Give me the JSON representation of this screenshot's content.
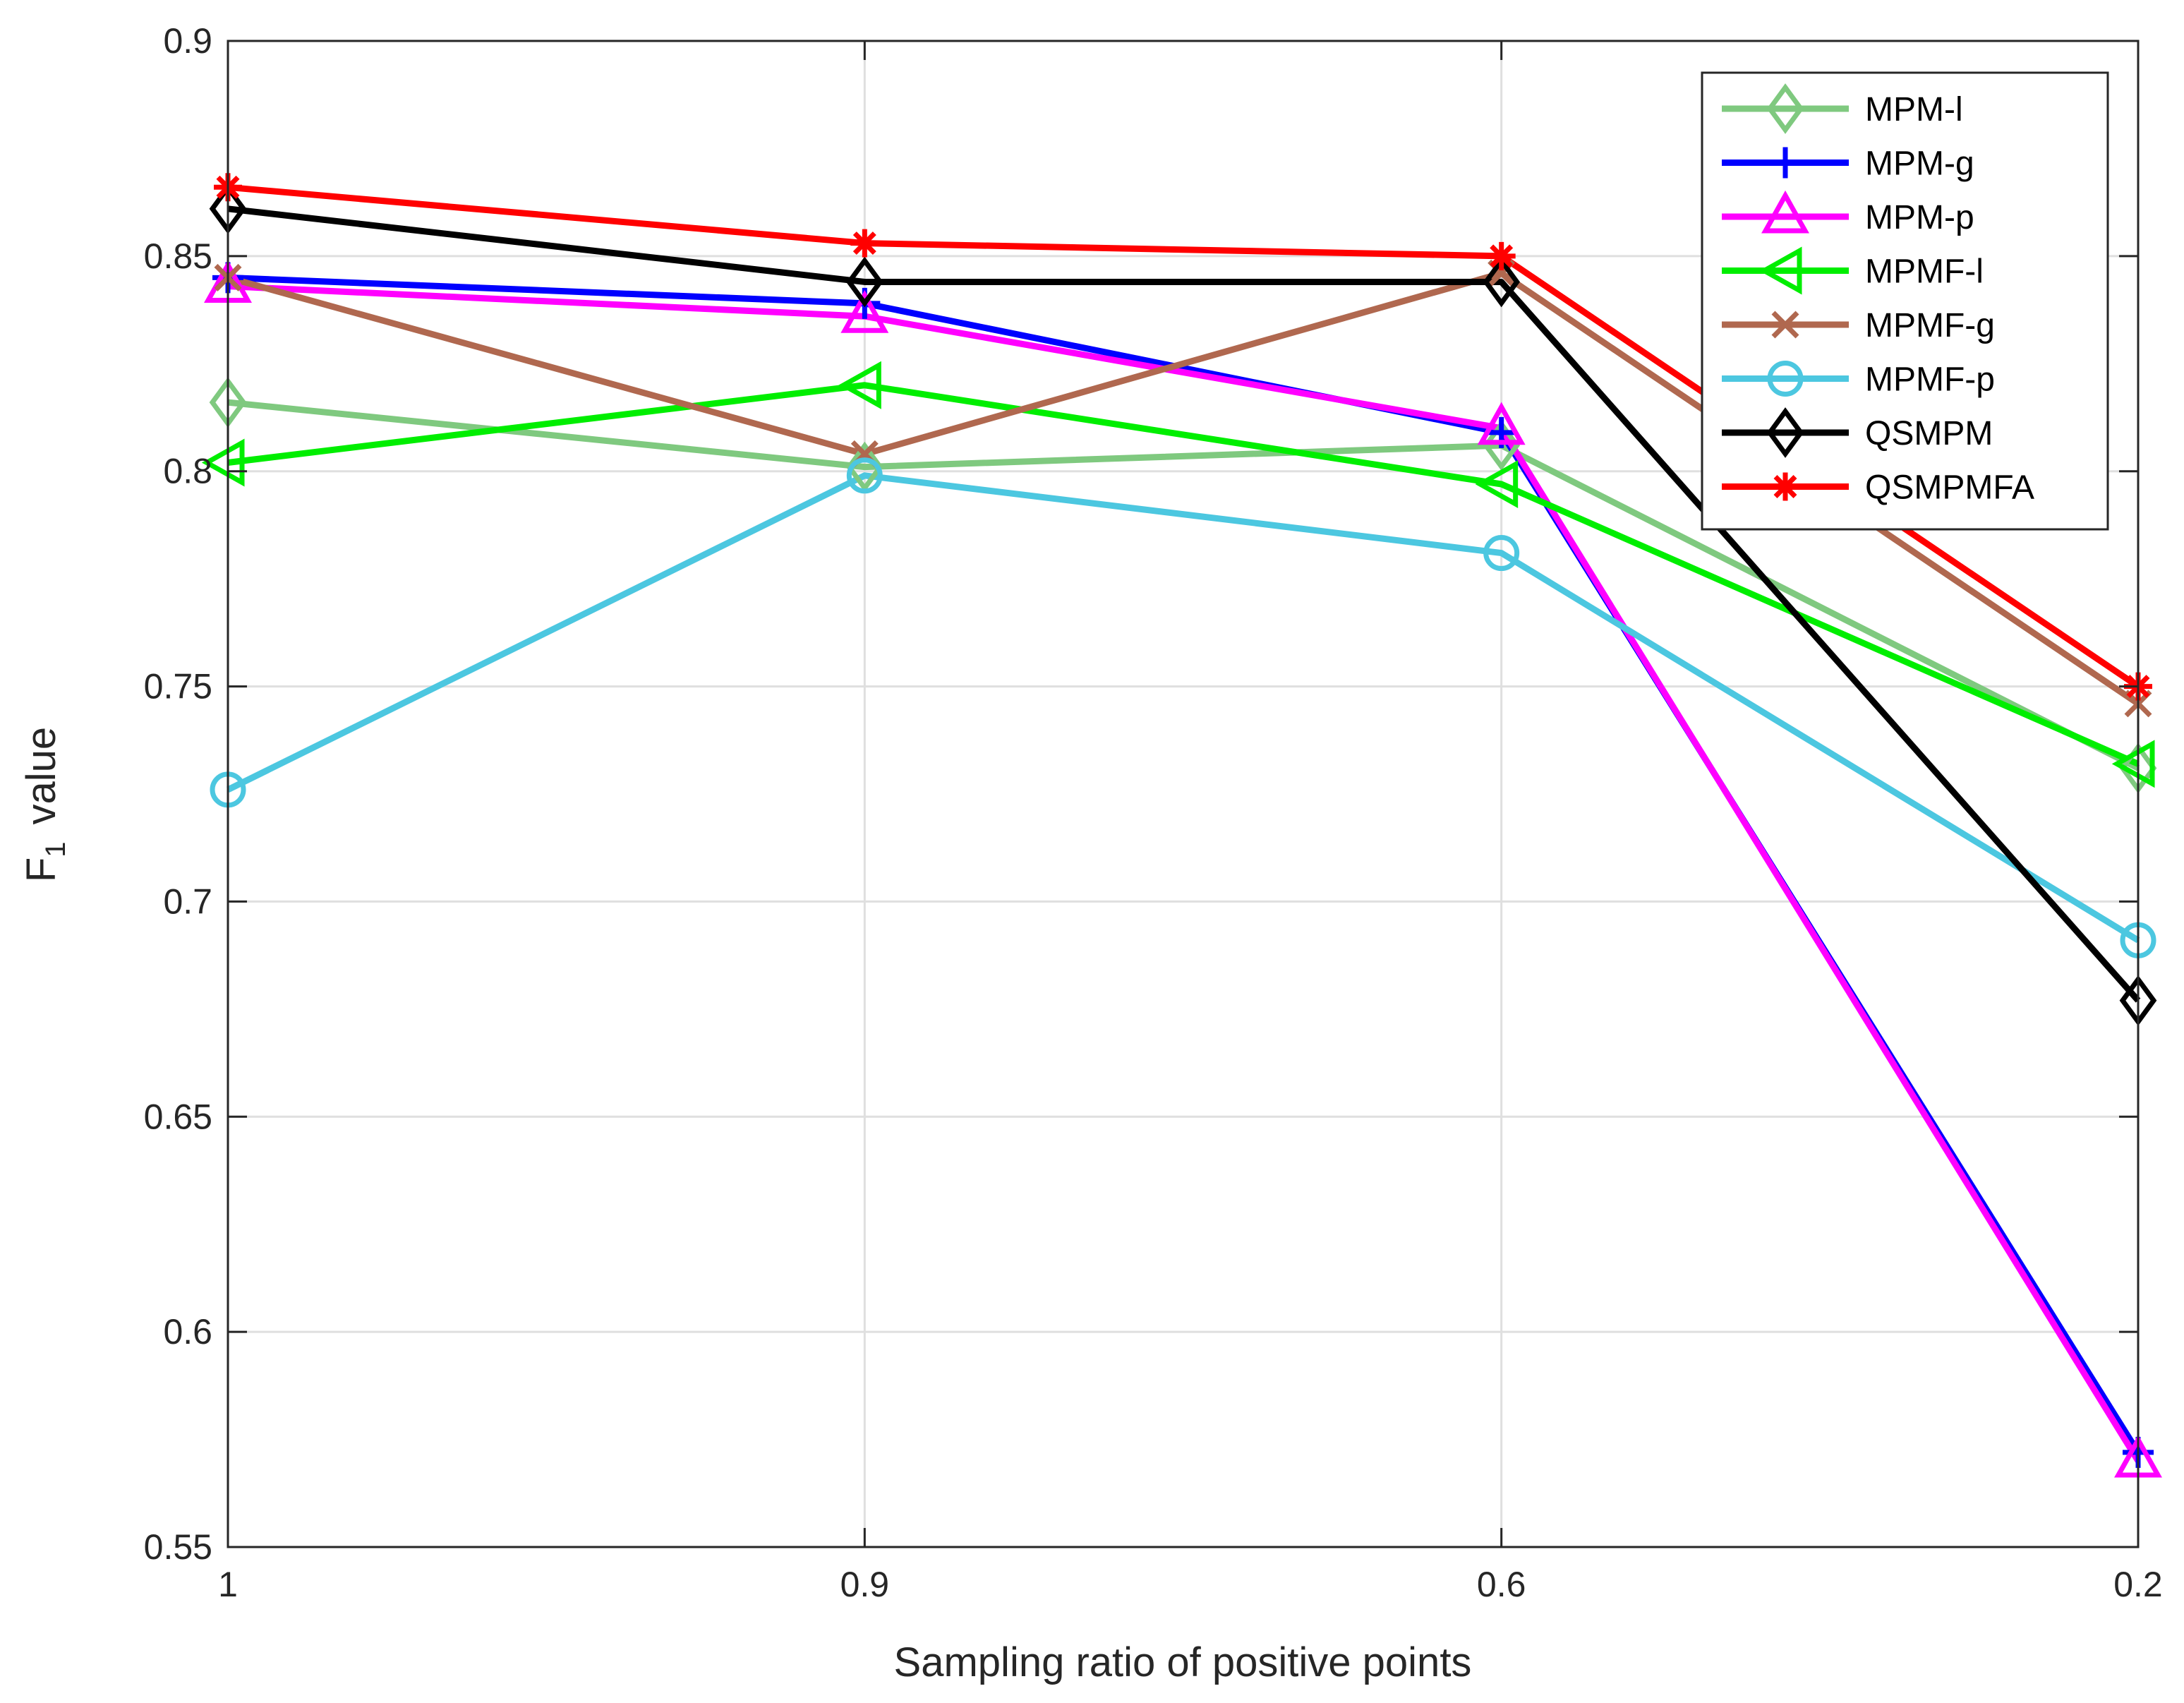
{
  "chart_data": {
    "type": "line",
    "title": "",
    "xlabel": "Sampling ratio of positive points",
    "ylabel": "F",
    "ylabel_subscript": "1",
    "ylabel_suffix": "value",
    "x": [
      "1",
      "0.9",
      "0.6",
      "0.2"
    ],
    "ylim": [
      0.55,
      0.9
    ],
    "yticks": [
      "0.55",
      "0.6",
      "0.65",
      "0.7",
      "0.75",
      "0.8",
      "0.85",
      "0.9"
    ],
    "ytick_values": [
      0.55,
      0.6,
      0.65,
      0.7,
      0.75,
      0.8,
      0.85,
      0.9
    ],
    "grid": true,
    "legend_position": "top-right",
    "series": [
      {
        "name": "MPM-l",
        "values": [
          0.816,
          0.801,
          0.806,
          0.731
        ],
        "color": "#7fc97f",
        "marker": "diamond"
      },
      {
        "name": "MPM-g",
        "values": [
          0.845,
          0.839,
          0.809,
          0.572
        ],
        "color": "#0000ff",
        "marker": "plus"
      },
      {
        "name": "MPM-p",
        "values": [
          0.843,
          0.836,
          0.81,
          0.57
        ],
        "color": "#ff00ff",
        "marker": "triangle"
      },
      {
        "name": "MPMF-l",
        "values": [
          0.802,
          0.82,
          0.797,
          0.732
        ],
        "color": "#00ee00",
        "marker": "triangle-left"
      },
      {
        "name": "MPMF-g",
        "values": [
          0.845,
          0.804,
          0.846,
          0.746
        ],
        "color": "#b0684f",
        "marker": "x"
      },
      {
        "name": "MPMF-p",
        "values": [
          0.726,
          0.799,
          0.781,
          0.691
        ],
        "color": "#4cc7e0",
        "marker": "circle"
      },
      {
        "name": "QSMPM",
        "values": [
          0.861,
          0.844,
          0.844,
          0.677
        ],
        "color": "#000000",
        "marker": "diamond"
      },
      {
        "name": "QSMPMFA",
        "values": [
          0.866,
          0.853,
          0.85,
          0.75
        ],
        "color": "#ff0000",
        "marker": "asterisk"
      }
    ]
  }
}
